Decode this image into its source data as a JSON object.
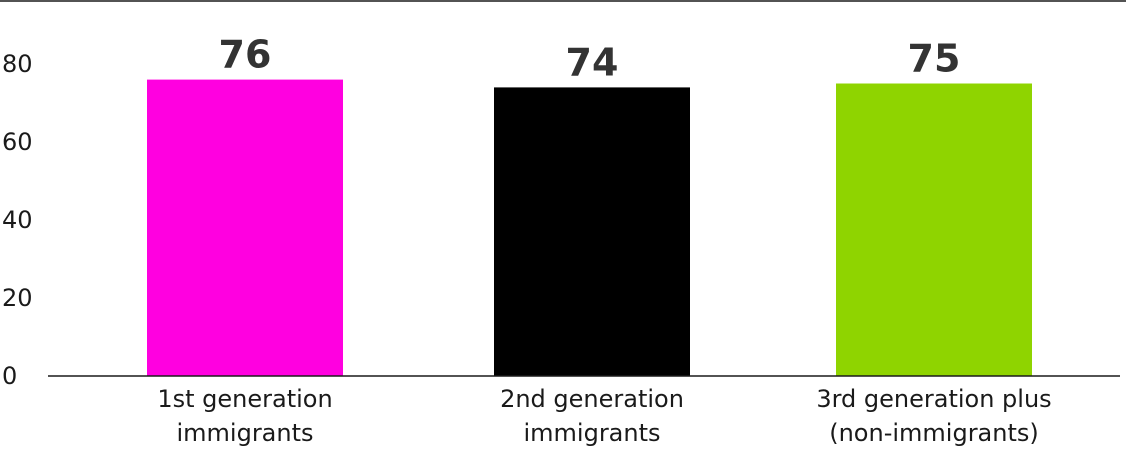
{
  "chart_data": {
    "type": "bar",
    "categories": [
      [
        "1st generation",
        "immigrants"
      ],
      [
        "2nd generation",
        "immigrants"
      ],
      [
        "3rd generation plus",
        "(non-immigrants)"
      ]
    ],
    "values": [
      76,
      74,
      75
    ],
    "data_labels": [
      "76",
      "74",
      "75"
    ],
    "colors": [
      "#ff00e0",
      "#000000",
      "#8fd400"
    ],
    "yticks": [
      "0",
      "20",
      "40",
      "60",
      "80"
    ],
    "ylim": [
      0,
      80
    ],
    "grid": false
  }
}
